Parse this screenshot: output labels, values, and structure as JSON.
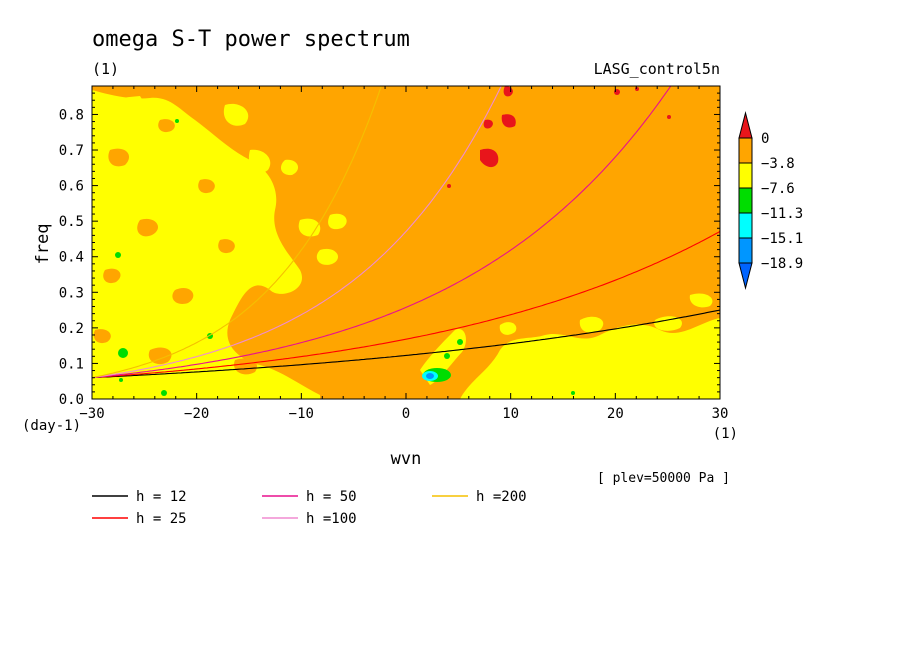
{
  "chart_data": {
    "type": "contour",
    "title": "omega S-T power spectrum",
    "units_left": "(1)",
    "case_label": "LASG_control5n",
    "xlabel": "wvn",
    "ylabel": "freq",
    "y_units": "(day-1)",
    "x_units": "(1)",
    "level_note": "[ plev=50000 Pa ]",
    "xlim": [
      -30,
      30
    ],
    "ylim": [
      0.0,
      0.88
    ],
    "x_ticks": [
      -30,
      -20,
      -10,
      0,
      10,
      20,
      30
    ],
    "x_tick_labels": [
      "-30",
      "-20",
      "-10",
      "0",
      "10",
      "20",
      "30"
    ],
    "y_ticks": [
      0.0,
      0.1,
      0.2,
      0.3,
      0.4,
      0.5,
      0.6,
      0.7,
      0.8
    ],
    "y_tick_labels": [
      "0.0",
      "0.1",
      "0.2",
      "0.3",
      "0.4",
      "0.5",
      "0.6",
      "0.7",
      "0.8"
    ],
    "colorbar": {
      "levels": [
        "0",
        "-3.8",
        "-7.6",
        "-11.3",
        "-15.1",
        "-18.9"
      ],
      "colors": [
        "#e8151b",
        "#ffa500",
        "#ffff00",
        "#00dd00",
        "#00ffff",
        "#0096ff",
        "#0064ff"
      ]
    },
    "background_color": "#ffa500",
    "dispersion_curves": [
      {
        "name": "h = 12",
        "equivalent_depth": 12,
        "color": "#000000"
      },
      {
        "name": "h = 25",
        "equivalent_depth": 25,
        "color": "#ff0000"
      },
      {
        "name": "h = 50",
        "equivalent_depth": 50,
        "color": "#e8108e"
      },
      {
        "name": "h =100",
        "equivalent_depth": 100,
        "color": "#f08cd0"
      },
      {
        "name": "h =200",
        "equivalent_depth": 200,
        "color": "#f5c000"
      }
    ]
  }
}
